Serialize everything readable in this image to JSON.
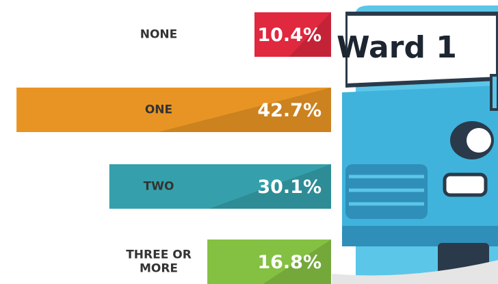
{
  "chart_data": {
    "type": "bar",
    "orientation": "horizontal",
    "title": "Ward 1",
    "categories": [
      "NONE",
      "ONE",
      "TWO",
      "THREE OR MORE"
    ],
    "values": [
      10.4,
      42.7,
      30.1,
      16.8
    ],
    "value_labels": [
      "10.4%",
      "42.7%",
      "30.1%",
      "16.8%"
    ],
    "colors": [
      "#e0283f",
      "#e89424",
      "#35a0ab",
      "#84c042"
    ]
  }
}
